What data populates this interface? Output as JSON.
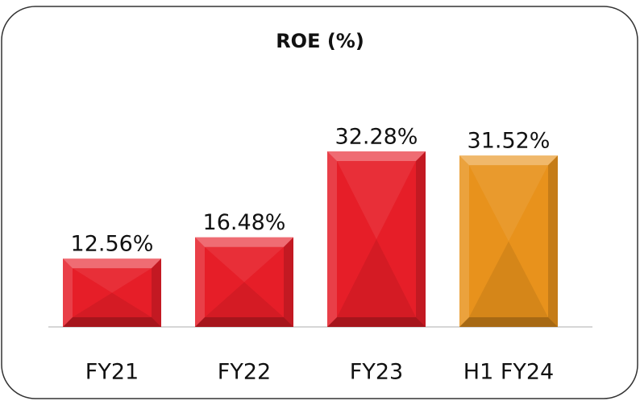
{
  "chart_data": {
    "type": "bar",
    "title": "ROE (%)",
    "categories": [
      "FY21",
      "FY22",
      "FY23",
      "H1 FY24"
    ],
    "values": [
      12.56,
      16.48,
      32.28,
      31.52
    ],
    "value_labels": [
      "12.56%",
      "16.48%",
      "32.28%",
      "31.52%"
    ],
    "colors": [
      "#e61e28",
      "#e61e28",
      "#e61e28",
      "#e8921c"
    ]
  }
}
